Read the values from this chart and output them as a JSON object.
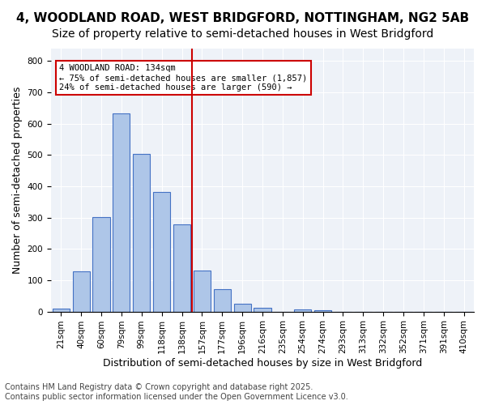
{
  "title1": "4, WOODLAND ROAD, WEST BRIDGFORD, NOTTINGHAM, NG2 5AB",
  "title2": "Size of property relative to semi-detached houses in West Bridgford",
  "xlabel": "Distribution of semi-detached houses by size in West Bridgford",
  "ylabel": "Number of semi-detached properties",
  "categories": [
    "21sqm",
    "40sqm",
    "60sqm",
    "79sqm",
    "99sqm",
    "118sqm",
    "138sqm",
    "157sqm",
    "177sqm",
    "196sqm",
    "216sqm",
    "235sqm",
    "254sqm",
    "274sqm",
    "293sqm",
    "313sqm",
    "332sqm",
    "352sqm",
    "371sqm",
    "391sqm",
    "410sqm"
  ],
  "values": [
    10,
    128,
    302,
    632,
    504,
    383,
    278,
    131,
    72,
    26,
    13,
    0,
    7,
    3,
    0,
    0,
    0,
    0,
    0,
    0,
    0
  ],
  "bar_color": "#aec6e8",
  "bar_edge_color": "#4472c4",
  "vline_pos": 6.5,
  "vline_color": "#cc0000",
  "annotation_title": "4 WOODLAND ROAD: 134sqm",
  "annotation_line1": "← 75% of semi-detached houses are smaller (1,857)",
  "annotation_line2": "24% of semi-detached houses are larger (590) →",
  "annotation_box_color": "#cc0000",
  "ylim": [
    0,
    840
  ],
  "yticks": [
    0,
    100,
    200,
    300,
    400,
    500,
    600,
    700,
    800
  ],
  "background_color": "#eef2f8",
  "footer1": "Contains HM Land Registry data © Crown copyright and database right 2025.",
  "footer2": "Contains public sector information licensed under the Open Government Licence v3.0.",
  "title_fontsize": 11,
  "subtitle_fontsize": 10,
  "axis_fontsize": 9,
  "tick_fontsize": 7.5,
  "footer_fontsize": 7
}
